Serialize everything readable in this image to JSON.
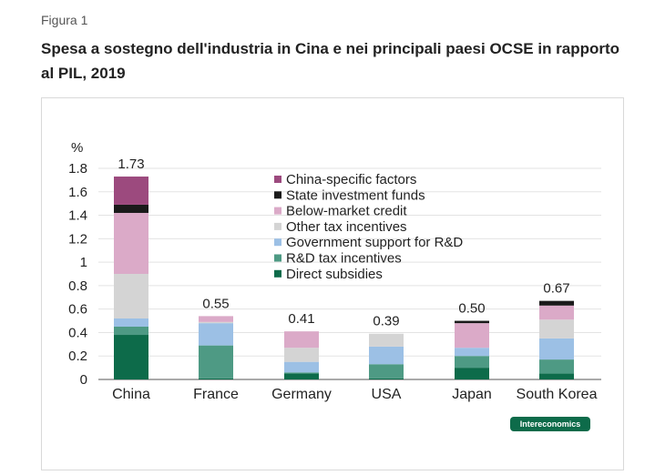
{
  "figure_label": "Figura 1",
  "title": "Spesa a sostegno dell'industria in Cina e nei principali paesi OCSE in rapporto al PIL, 2019",
  "brand": "Intereconomics",
  "chart_data": {
    "type": "bar",
    "stacked": true,
    "unit_label": "%",
    "ylim": [
      0,
      1.8
    ],
    "yticks": [
      "0",
      "0.2",
      "0.4",
      "0.6",
      "0.8",
      "1",
      "1.2",
      "1.4",
      "1.6",
      "1.8"
    ],
    "grid": true,
    "legend_position": "top-center",
    "categories": [
      "China",
      "France",
      "Germany",
      "USA",
      "Japan",
      "South Korea"
    ],
    "totals": [
      "1.73",
      "0.55",
      "0.41",
      "0.39",
      "0.50",
      "0.67"
    ],
    "series": [
      {
        "name": "Direct subsidies",
        "color": "#0d6b4a",
        "values": [
          0.38,
          0.01,
          0.05,
          0.01,
          0.1,
          0.05
        ]
      },
      {
        "name": "R&D tax incentives",
        "color": "#4e9a84",
        "values": [
          0.07,
          0.28,
          0.01,
          0.12,
          0.1,
          0.12
        ]
      },
      {
        "name": "Government support for R&D",
        "color": "#9cc0e5",
        "values": [
          0.07,
          0.19,
          0.09,
          0.15,
          0.07,
          0.18
        ]
      },
      {
        "name": "Other tax incentives",
        "color": "#d4d4d4",
        "values": [
          0.38,
          0.01,
          0.12,
          0.11,
          0.0,
          0.16
        ]
      },
      {
        "name": "Below-market credit",
        "color": "#dbaac8",
        "values": [
          0.52,
          0.05,
          0.14,
          0.0,
          0.21,
          0.12
        ]
      },
      {
        "name": "State investment funds",
        "color": "#1a1a1a",
        "values": [
          0.07,
          0.0,
          0.0,
          0.0,
          0.02,
          0.04
        ]
      },
      {
        "name": "China-specific factors",
        "color": "#9c4a7e",
        "values": [
          0.24,
          0.0,
          0.0,
          0.0,
          0.0,
          0.0
        ]
      }
    ]
  }
}
